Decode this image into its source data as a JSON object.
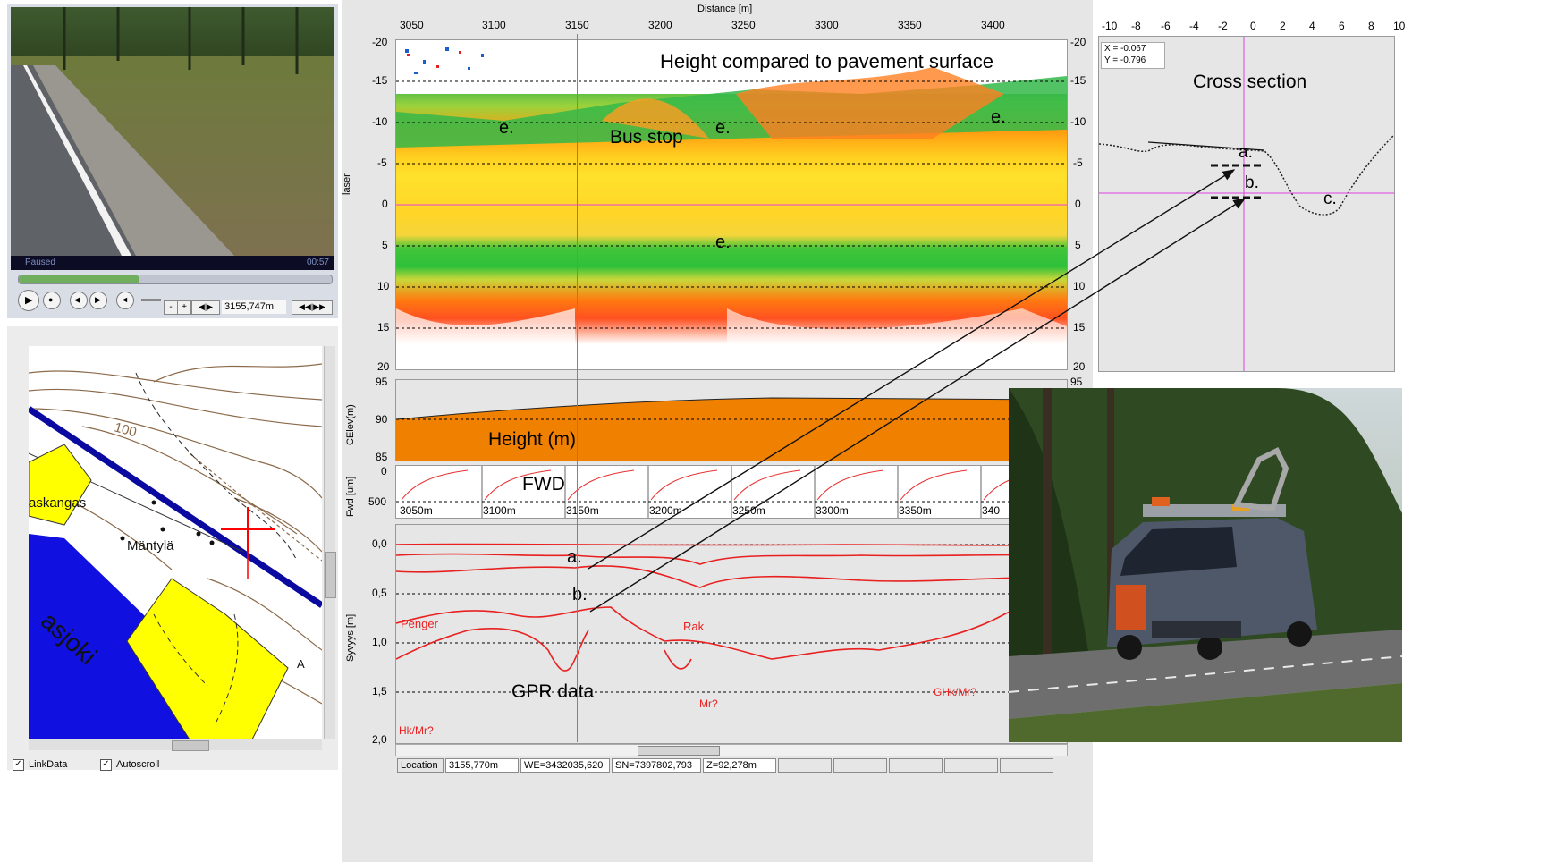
{
  "video": {
    "status": "Paused",
    "time": "00:57",
    "position": "3155,747m"
  },
  "map": {
    "labels": {
      "contour": "100",
      "place1": "askangas",
      "place2": "Mäntylä",
      "river": "asjoki",
      "letter": "A"
    },
    "link_data_label": "LinkData",
    "autoscroll_label": "Autoscroll"
  },
  "laser": {
    "axis_title": "Distance [m]",
    "x_ticks": [
      "3050",
      "3100",
      "3150",
      "3200",
      "3250",
      "3300",
      "3350",
      "3400"
    ],
    "y_ticks": [
      "-20",
      "-15",
      "-10",
      "-5",
      "0",
      "5",
      "10",
      "15",
      "20"
    ],
    "ylabel": "laser",
    "annotation_title": "Height compared to pavement surface",
    "annotation_bus": "Bus stop",
    "marker_e": "e."
  },
  "cross_section": {
    "x_ticks": [
      "-10",
      "-8",
      "-6",
      "-4",
      "-2",
      "0",
      "2",
      "4",
      "6",
      "8",
      "10"
    ],
    "readout_x": "X = -0.067",
    "readout_y": "Y = -0.796",
    "title": "Cross section",
    "label_a": "a.",
    "label_b": "b.",
    "label_c": "c."
  },
  "height": {
    "ylabel": "CElev(m)",
    "y_ticks": [
      "95",
      "90",
      "85"
    ],
    "right_tick": "95",
    "label": "Height (m)"
  },
  "fwd": {
    "ylabel": "Fwd [um]",
    "y_ticks": [
      "0",
      "500"
    ],
    "label": "FWD",
    "x_ticks": [
      "3050m",
      "3100m",
      "3150m",
      "3200m",
      "3250m",
      "3300m",
      "3350m",
      "340"
    ]
  },
  "gpr": {
    "ylabel": "Syvyys [m]",
    "y_ticks": [
      "0,0",
      "0,5",
      "1,0",
      "1,5",
      "2,0"
    ],
    "label": "GPR data",
    "label_a": "a.",
    "label_b": "b.",
    "red_penger": "Penger",
    "red_rak": "Rak",
    "red_mr": "Mr?",
    "red_hk": "Hk/Mr?",
    "red_ghk": "GHk/Mr?"
  },
  "status_bar": {
    "location_label": "Location",
    "location_value": "3155,770m",
    "we_value": "WE=3432035,620",
    "sn_value": "SN=7397802,793",
    "z_value": "Z=92,278m"
  },
  "colors": {
    "cursor": "#e040e0",
    "fwd_line": "#e83030",
    "gpr_line": "#e82020",
    "height_fill": "#f08000",
    "river": "#1010e0",
    "field_yellow": "#ffff00",
    "road_blue": "#0a0aa0"
  }
}
